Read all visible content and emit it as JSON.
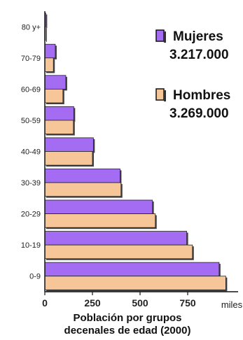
{
  "chart_data": {
    "type": "bar",
    "orientation": "horizontal",
    "categories": [
      "80 y+",
      "70-79",
      "60-69",
      "50-59",
      "40-49",
      "30-39",
      "20-29",
      "10-19",
      "0-9"
    ],
    "series": [
      {
        "name": "Mujeres",
        "total": "3.217.000",
        "color": "#a36cf2",
        "values": [
          5,
          55,
          110,
          152,
          255,
          395,
          565,
          745,
          915
        ]
      },
      {
        "name": "Hombres",
        "total": "3.269.000",
        "color": "#f6c598",
        "values": [
          3,
          45,
          95,
          150,
          250,
          400,
          580,
          775,
          950
        ]
      }
    ],
    "xticks": [
      "0",
      "250",
      "500",
      "750"
    ],
    "xunit": "miles",
    "xlim": [
      0,
      1000
    ],
    "caption_line1": "Población por grupos",
    "caption_line2": "decenales de edad (2000)",
    "legend_position": "top-right",
    "grid": false
  }
}
